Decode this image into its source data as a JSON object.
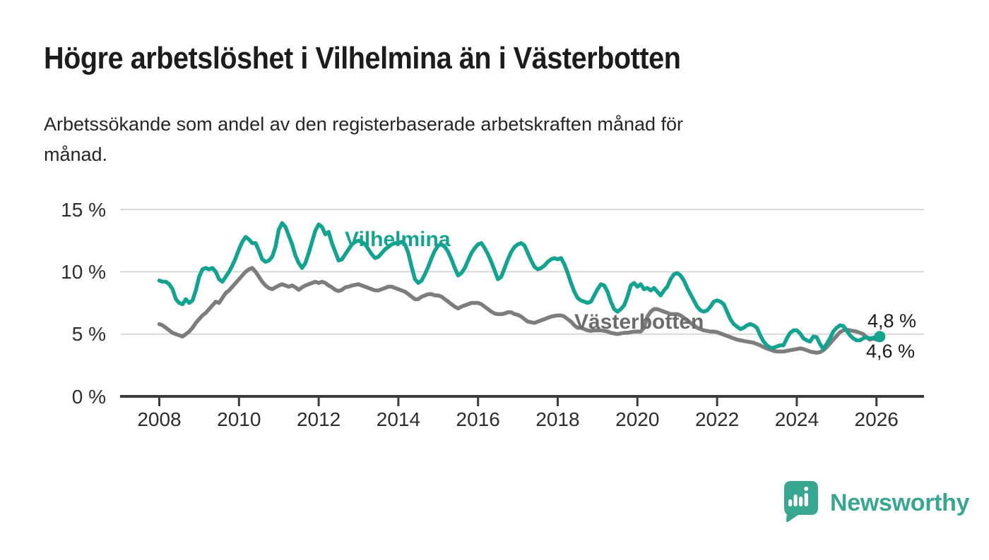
{
  "title": "Högre arbetslöshet i Vilhelmina än i Västerbotten",
  "subtitle_line1": "Arbetssökande som andel av den registerbaserade arbetskraften månad för",
  "subtitle_line2": "månad.",
  "branding": {
    "logo_text": "Newsworthy",
    "logo_icon": "speech-bubble-bar-chart",
    "logo_color": "#38a690"
  },
  "colors": {
    "vilhelmina_line": "#14a291",
    "vasterbotten_line": "#7d7d7d",
    "vasterbotten_label": "#6b6b6b",
    "gridline": "#d8d8d8",
    "axis": "#3c3c3c"
  },
  "chart_data": {
    "type": "line",
    "title": "Högre arbetslöshet i Vilhelmina än i Västerbotten",
    "xlabel": "",
    "ylabel": "",
    "unit": "%",
    "x_start": "2008-01",
    "x_end": "2026-02",
    "x_ticks": [
      2008,
      2010,
      2012,
      2014,
      2016,
      2018,
      2020,
      2022,
      2024,
      2026
    ],
    "y_tick_labels": [
      "0 %",
      "5 %",
      "10 %",
      "15 %"
    ],
    "y_tick_values": [
      0,
      5,
      10,
      15
    ],
    "ylim": [
      0,
      16.5
    ],
    "grid": "horizontal",
    "legend_position": "inline-labels",
    "series": [
      {
        "name": "Vilhelmina",
        "color": "#14a291",
        "end_label": "4,8 %",
        "end_value": 4.8,
        "values": [
          9.3,
          9.2,
          9.2,
          9.0,
          8.6,
          7.8,
          7.5,
          7.4,
          7.8,
          7.5,
          7.7,
          8.5,
          9.6,
          10.2,
          10.3,
          10.2,
          10.3,
          10.0,
          9.4,
          9.2,
          9.6,
          10.0,
          10.5,
          11.1,
          11.8,
          12.4,
          12.8,
          12.6,
          12.3,
          12.3,
          11.7,
          11.0,
          10.8,
          10.9,
          11.2,
          12.0,
          13.4,
          13.9,
          13.6,
          12.9,
          12.2,
          11.3,
          10.7,
          10.3,
          10.7,
          11.5,
          12.4,
          13.3,
          13.8,
          13.6,
          13.0,
          13.2,
          12.3,
          11.6,
          10.9,
          11.0,
          11.4,
          11.8,
          12.2,
          12.4,
          12.5,
          12.4,
          12.2,
          11.8,
          11.4,
          11.1,
          11.2,
          11.5,
          11.8,
          12.0,
          12.2,
          12.3,
          12.3,
          12.4,
          12.2,
          11.5,
          10.4,
          9.4,
          9.1,
          9.3,
          9.8,
          10.4,
          11.1,
          11.7,
          12.1,
          12.2,
          12.0,
          11.6,
          11.0,
          10.3,
          9.7,
          9.9,
          10.3,
          10.9,
          11.5,
          11.9,
          12.2,
          12.3,
          11.9,
          11.4,
          10.8,
          10.1,
          9.4,
          9.6,
          10.3,
          11.0,
          11.6,
          12.0,
          12.2,
          12.3,
          12.1,
          11.5,
          10.9,
          10.4,
          10.2,
          10.3,
          10.5,
          10.8,
          11.0,
          11.1,
          11.0,
          11.1,
          10.6,
          9.9,
          9.1,
          8.4,
          7.9,
          7.7,
          7.6,
          7.5,
          7.6,
          8.1,
          8.6,
          9.0,
          8.9,
          8.4,
          7.6,
          7.0,
          6.8,
          7.0,
          7.3,
          8.0,
          8.9,
          9.1,
          8.8,
          9.0,
          8.6,
          8.7,
          8.5,
          8.7,
          8.4,
          8.1,
          8.5,
          8.8,
          9.4,
          9.8,
          9.9,
          9.7,
          9.3,
          8.7,
          8.2,
          7.7,
          7.2,
          6.9,
          6.8,
          6.9,
          7.2,
          7.6,
          7.7,
          7.6,
          7.4,
          6.8,
          6.2,
          5.8,
          5.6,
          5.4,
          5.5,
          5.7,
          5.8,
          5.7,
          5.5,
          4.9,
          4.4,
          4.1,
          3.9,
          3.9,
          4.0,
          4.1,
          4.1,
          4.65,
          5.1,
          5.3,
          5.3,
          5.05,
          4.65,
          4.5,
          4.4,
          4.8,
          4.75,
          4.2,
          3.8,
          4.2,
          4.65,
          5.2,
          5.5,
          5.7,
          5.65,
          5.3,
          4.9,
          4.65,
          4.5,
          4.5,
          4.65,
          4.75,
          4.65,
          4.7,
          4.75,
          4.8
        ]
      },
      {
        "name": "Västerbotten",
        "color": "#7d7d7d",
        "end_label": "4,6 %",
        "end_value": 4.6,
        "values": [
          5.8,
          5.7,
          5.5,
          5.3,
          5.1,
          5.0,
          4.9,
          4.8,
          5.0,
          5.2,
          5.5,
          5.9,
          6.2,
          6.5,
          6.7,
          7.0,
          7.3,
          7.6,
          7.5,
          7.9,
          8.3,
          8.5,
          8.8,
          9.1,
          9.4,
          9.7,
          10.0,
          10.2,
          10.3,
          10.0,
          9.6,
          9.2,
          8.9,
          8.7,
          8.6,
          8.75,
          8.9,
          9.0,
          8.9,
          8.8,
          8.9,
          8.75,
          8.55,
          8.75,
          8.9,
          9.0,
          9.1,
          9.2,
          9.1,
          9.2,
          9.1,
          8.9,
          8.75,
          8.55,
          8.45,
          8.55,
          8.75,
          8.8,
          8.9,
          8.95,
          9.0,
          8.9,
          8.8,
          8.7,
          8.6,
          8.5,
          8.5,
          8.6,
          8.7,
          8.8,
          8.8,
          8.7,
          8.6,
          8.5,
          8.4,
          8.2,
          8.0,
          7.8,
          7.8,
          8.0,
          8.1,
          8.2,
          8.2,
          8.1,
          8.1,
          8.0,
          7.8,
          7.6,
          7.4,
          7.2,
          7.05,
          7.2,
          7.3,
          7.4,
          7.5,
          7.5,
          7.5,
          7.4,
          7.2,
          7.0,
          6.8,
          6.65,
          6.6,
          6.6,
          6.65,
          6.75,
          6.75,
          6.6,
          6.55,
          6.4,
          6.2,
          6.0,
          5.95,
          5.9,
          6.0,
          6.1,
          6.2,
          6.3,
          6.4,
          6.45,
          6.5,
          6.5,
          6.4,
          6.2,
          6.0,
          5.7,
          5.5,
          5.5,
          5.4,
          5.3,
          5.25,
          5.3,
          5.3,
          5.3,
          5.25,
          5.2,
          5.1,
          5.05,
          5.0,
          5.05,
          5.1,
          5.1,
          5.15,
          5.2,
          5.2,
          5.2,
          5.5,
          6.4,
          6.8,
          7.0,
          7.0,
          6.9,
          6.8,
          6.7,
          6.6,
          6.6,
          6.6,
          6.5,
          6.3,
          6.1,
          5.9,
          5.7,
          5.5,
          5.4,
          5.3,
          5.25,
          5.2,
          5.2,
          5.15,
          5.05,
          4.95,
          4.85,
          4.75,
          4.65,
          4.55,
          4.5,
          4.45,
          4.4,
          4.35,
          4.3,
          4.2,
          4.1,
          3.95,
          3.85,
          3.75,
          3.65,
          3.6,
          3.6,
          3.6,
          3.65,
          3.7,
          3.75,
          3.8,
          3.85,
          3.8,
          3.7,
          3.6,
          3.55,
          3.5,
          3.55,
          3.7,
          3.95,
          4.25,
          4.55,
          4.85,
          5.15,
          5.3,
          5.35,
          5.3,
          5.25,
          5.2,
          5.1,
          5.0,
          4.75,
          4.55,
          4.65,
          4.55,
          4.6
        ]
      }
    ]
  }
}
